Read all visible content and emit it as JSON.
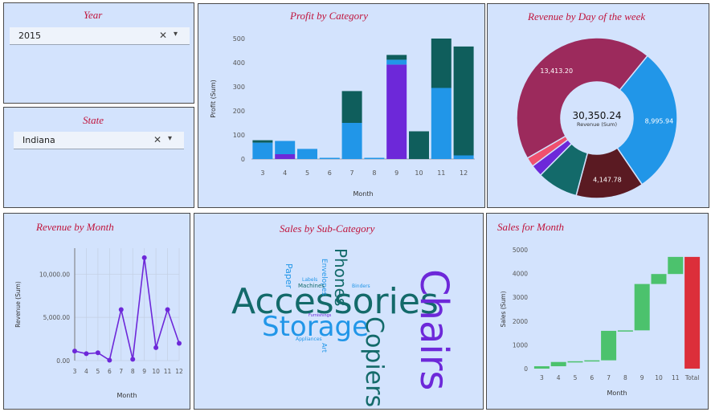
{
  "filters": {
    "year": {
      "title": "Year",
      "value": "2015",
      "clear_icon": "close-icon",
      "dropdown_icon": "chevron-down-icon"
    },
    "state": {
      "title": "State",
      "value": "Indiana",
      "clear_icon": "close-icon",
      "dropdown_icon": "chevron-down-icon"
    }
  },
  "colors": {
    "panel_bg": "#d3e3fd",
    "title": "#c0143c",
    "teal": "#0f5e5c",
    "blue": "#2196e8",
    "purple": "#6d28d9",
    "green": "#4cc26d",
    "red": "#dc2f3a"
  },
  "chart_data": [
    {
      "id": "profit_by_category",
      "type": "bar",
      "title": "Profit by Category",
      "xlabel": "Month",
      "ylabel": "Profit (Sum)",
      "ylim": [
        0,
        500
      ],
      "yticks": [
        0,
        100,
        200,
        300,
        400,
        500
      ],
      "categories": [
        "3",
        "4",
        "5",
        "6",
        "7",
        "8",
        "9",
        "10",
        "11",
        "12"
      ],
      "series": [
        {
          "name": "Purple",
          "color": "#6d28d9",
          "values": [
            0,
            20,
            0,
            0,
            0,
            0,
            392,
            0,
            0,
            0
          ]
        },
        {
          "name": "Blue",
          "color": "#2196e8",
          "values": [
            68,
            55,
            42,
            5,
            150,
            5,
            20,
            0,
            295,
            15
          ]
        },
        {
          "name": "Teal",
          "color": "#0f5e5c",
          "values": [
            10,
            0,
            0,
            0,
            132,
            0,
            20,
            115,
            205,
            452
          ]
        }
      ]
    },
    {
      "id": "revenue_by_day",
      "type": "pie",
      "title": "Revenue by Day of the week",
      "center_value": "30,350.24",
      "center_label": "Revenue (Sum)",
      "slices": [
        {
          "value": 13413.2,
          "label": "13,413.20",
          "color": "#9c2a5c"
        },
        {
          "value": 8995.94,
          "label": "8,995.94",
          "color": "#2196e8"
        },
        {
          "value": 4147.78,
          "label": "4,147.78",
          "color": "#5a1a22"
        },
        {
          "value": 2500,
          "label": "",
          "color": "#136a6a"
        },
        {
          "value": 725,
          "label": "",
          "color": "#6d28d9"
        },
        {
          "value": 568,
          "label": "",
          "color": "#f0506e"
        }
      ]
    },
    {
      "id": "revenue_by_month",
      "type": "line",
      "title": "Revenue by Month",
      "xlabel": "Month",
      "ylabel": "Revenue (Sum)",
      "ylim": [
        0,
        13000
      ],
      "yticks": [
        0,
        5000,
        10000
      ],
      "ytick_labels": [
        "0.00",
        "5,000.00",
        "10,000.00"
      ],
      "x": [
        "3",
        "4",
        "5",
        "6",
        "7",
        "8",
        "9",
        "10",
        "11",
        "12"
      ],
      "values": [
        1100,
        800,
        900,
        50,
        5900,
        150,
        11900,
        1500,
        5900,
        2000
      ],
      "color": "#6d28d9"
    },
    {
      "id": "sales_for_month",
      "type": "bar",
      "subtype": "waterfall",
      "title": "Sales for Month",
      "xlabel": "Month",
      "ylabel": "Sales (Sum)",
      "ylim": [
        0,
        5000
      ],
      "yticks": [
        0,
        1000,
        2000,
        3000,
        4000,
        5000
      ],
      "categories": [
        "3",
        "4",
        "5",
        "6",
        "7",
        "8",
        "9",
        "10",
        "11",
        "Total"
      ],
      "values": [
        100,
        180,
        30,
        40,
        1240,
        20,
        1950,
        420,
        720,
        4700
      ],
      "increase_color": "#4cc26d",
      "total_color": "#dc2f3a"
    }
  ],
  "wordcloud": {
    "title": "Sales by Sub-Category",
    "words": [
      {
        "text": "Accessories",
        "size": 44,
        "color": "#136a6a",
        "rotate": 0
      },
      {
        "text": "Storage",
        "size": 34,
        "color": "#2196e8",
        "rotate": 0
      },
      {
        "text": "Chairs",
        "size": 48,
        "color": "#6d28d9",
        "rotate": 90
      },
      {
        "text": "Copiers",
        "size": 30,
        "color": "#136a6a",
        "rotate": 90
      },
      {
        "text": "Phones",
        "size": 20,
        "color": "#136a6a",
        "rotate": 90
      },
      {
        "text": "Paper",
        "size": 11,
        "color": "#2196e8",
        "rotate": 90
      },
      {
        "text": "Envelopes",
        "size": 9,
        "color": "#2196e8",
        "rotate": 90
      },
      {
        "text": "Machines",
        "size": 7,
        "color": "#136a6a",
        "rotate": 0
      },
      {
        "text": "Labels",
        "size": 6,
        "color": "#2196e8",
        "rotate": 0
      },
      {
        "text": "Binders",
        "size": 6,
        "color": "#2196e8",
        "rotate": 0
      },
      {
        "text": "Furnishings",
        "size": 5,
        "color": "#6d28d9",
        "rotate": 0
      },
      {
        "text": "Appliances",
        "size": 6,
        "color": "#2196e8",
        "rotate": 0
      },
      {
        "text": "Art",
        "size": 8,
        "color": "#2196e8",
        "rotate": 90
      }
    ]
  }
}
